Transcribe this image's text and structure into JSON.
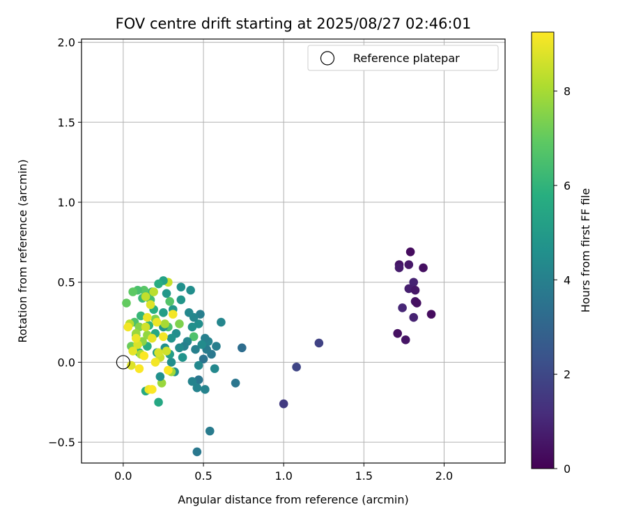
{
  "chart_data": {
    "type": "scatter",
    "title": "FOV centre drift starting at 2025/08/27 02:46:01",
    "xlabel": "Angular distance from reference (arcmin)",
    "ylabel": "Rotation from reference (arcmin)",
    "xlim": [
      -0.26,
      2.38
    ],
    "ylim": [
      -0.63,
      2.02
    ],
    "xticks": [
      0.0,
      0.5,
      1.0,
      1.5,
      2.0
    ],
    "xtick_labels": [
      "0.0",
      "0.5",
      "1.0",
      "1.5",
      "2.0"
    ],
    "yticks": [
      -0.5,
      0.0,
      0.5,
      1.0,
      1.5,
      2.0
    ],
    "ytick_labels": [
      "−0.5",
      "0.0",
      "0.5",
      "1.0",
      "1.5",
      "2.0"
    ],
    "grid": true,
    "legend": {
      "placement": "top-right",
      "entries": [
        {
          "label": "Reference platepar",
          "marker": "open-circle",
          "color": "#000000"
        }
      ]
    },
    "reference_point": {
      "x": 0.0,
      "y": 0.0
    },
    "colorbar": {
      "label": "Hours from first FF file",
      "colormap": "viridis",
      "range": [
        0,
        9.25
      ],
      "ticks": [
        0,
        2,
        4,
        6,
        8
      ],
      "tick_labels": [
        "0",
        "2",
        "4",
        "6",
        "8"
      ]
    },
    "points": [
      {
        "x": 1.79,
        "y": 0.69,
        "c": 0.3
      },
      {
        "x": 1.72,
        "y": 0.61,
        "c": 0.5
      },
      {
        "x": 1.78,
        "y": 0.61,
        "c": 0.6
      },
      {
        "x": 1.72,
        "y": 0.59,
        "c": 0.7
      },
      {
        "x": 1.87,
        "y": 0.59,
        "c": 0.4
      },
      {
        "x": 1.81,
        "y": 0.5,
        "c": 0.9
      },
      {
        "x": 1.78,
        "y": 0.46,
        "c": 0.8
      },
      {
        "x": 1.82,
        "y": 0.45,
        "c": 0.6
      },
      {
        "x": 1.82,
        "y": 0.38,
        "c": 0.5
      },
      {
        "x": 1.83,
        "y": 0.37,
        "c": 0.4
      },
      {
        "x": 1.74,
        "y": 0.34,
        "c": 1.0
      },
      {
        "x": 1.92,
        "y": 0.3,
        "c": 0.3
      },
      {
        "x": 1.81,
        "y": 0.28,
        "c": 0.9
      },
      {
        "x": 1.71,
        "y": 0.18,
        "c": 0.4
      },
      {
        "x": 1.76,
        "y": 0.14,
        "c": 0.5
      },
      {
        "x": 1.22,
        "y": 0.12,
        "c": 1.8
      },
      {
        "x": 1.08,
        "y": -0.03,
        "c": 1.9
      },
      {
        "x": 1.0,
        "y": -0.26,
        "c": 1.6
      },
      {
        "x": 0.74,
        "y": 0.09,
        "c": 3.3
      },
      {
        "x": 0.7,
        "y": -0.13,
        "c": 3.6
      },
      {
        "x": 0.61,
        "y": 0.25,
        "c": 4.2
      },
      {
        "x": 0.58,
        "y": 0.1,
        "c": 3.9
      },
      {
        "x": 0.57,
        "y": -0.04,
        "c": 4.3
      },
      {
        "x": 0.55,
        "y": 0.05,
        "c": 3.7
      },
      {
        "x": 0.54,
        "y": -0.43,
        "c": 3.8
      },
      {
        "x": 0.53,
        "y": 0.13,
        "c": 4.1
      },
      {
        "x": 0.52,
        "y": 0.08,
        "c": 3.8
      },
      {
        "x": 0.51,
        "y": 0.15,
        "c": 4.0
      },
      {
        "x": 0.51,
        "y": -0.17,
        "c": 4.1
      },
      {
        "x": 0.5,
        "y": 0.02,
        "c": 3.5
      },
      {
        "x": 0.49,
        "y": 0.11,
        "c": 4.4
      },
      {
        "x": 0.48,
        "y": 0.3,
        "c": 3.9
      },
      {
        "x": 0.47,
        "y": -0.02,
        "c": 4.3
      },
      {
        "x": 0.47,
        "y": -0.11,
        "c": 3.6
      },
      {
        "x": 0.47,
        "y": 0.24,
        "c": 4.5
      },
      {
        "x": 0.46,
        "y": -0.16,
        "c": 4.1
      },
      {
        "x": 0.46,
        "y": -0.56,
        "c": 3.7
      },
      {
        "x": 0.45,
        "y": 0.08,
        "c": 4.0
      },
      {
        "x": 0.44,
        "y": 0.16,
        "c": 6.6
      },
      {
        "x": 0.44,
        "y": 0.28,
        "c": 4.2
      },
      {
        "x": 0.43,
        "y": 0.22,
        "c": 4.6
      },
      {
        "x": 0.43,
        "y": -0.12,
        "c": 4.1
      },
      {
        "x": 0.42,
        "y": 0.45,
        "c": 4.5
      },
      {
        "x": 0.41,
        "y": 0.31,
        "c": 4.3
      },
      {
        "x": 0.4,
        "y": 0.13,
        "c": 4.2
      },
      {
        "x": 0.38,
        "y": 0.1,
        "c": 4.0
      },
      {
        "x": 0.37,
        "y": 0.03,
        "c": 4.7
      },
      {
        "x": 0.36,
        "y": 0.39,
        "c": 4.8
      },
      {
        "x": 0.36,
        "y": 0.47,
        "c": 4.6
      },
      {
        "x": 0.35,
        "y": 0.24,
        "c": 7.4
      },
      {
        "x": 0.35,
        "y": 0.09,
        "c": 4.4
      },
      {
        "x": 0.33,
        "y": 0.18,
        "c": 4.5
      },
      {
        "x": 0.32,
        "y": -0.06,
        "c": 4.6
      },
      {
        "x": 0.31,
        "y": 0.33,
        "c": 4.9
      },
      {
        "x": 0.3,
        "y": 0.15,
        "c": 4.7
      },
      {
        "x": 0.3,
        "y": 0.0,
        "c": 4.5
      },
      {
        "x": 0.29,
        "y": 0.05,
        "c": 5.1
      },
      {
        "x": 0.29,
        "y": 0.38,
        "c": 6.7
      },
      {
        "x": 0.28,
        "y": 0.5,
        "c": 8.5
      },
      {
        "x": 0.28,
        "y": 0.22,
        "c": 6.5
      },
      {
        "x": 0.27,
        "y": 0.43,
        "c": 4.9
      },
      {
        "x": 0.26,
        "y": 0.09,
        "c": 4.6
      },
      {
        "x": 0.25,
        "y": 0.31,
        "c": 5.1
      },
      {
        "x": 0.25,
        "y": 0.51,
        "c": 5.3
      },
      {
        "x": 0.25,
        "y": 0.22,
        "c": 4.8
      },
      {
        "x": 0.24,
        "y": -0.13,
        "c": 7.8
      },
      {
        "x": 0.23,
        "y": -0.09,
        "c": 4.6
      },
      {
        "x": 0.22,
        "y": -0.25,
        "c": 5.5
      },
      {
        "x": 0.22,
        "y": 0.49,
        "c": 5.7
      },
      {
        "x": 0.21,
        "y": 0.06,
        "c": 5.1
      },
      {
        "x": 0.2,
        "y": 0.18,
        "c": 5.5
      },
      {
        "x": 0.19,
        "y": 0.33,
        "c": 5.8
      },
      {
        "x": 0.18,
        "y": 0.44,
        "c": 6.2
      },
      {
        "x": 0.17,
        "y": 0.39,
        "c": 6.4
      },
      {
        "x": 0.16,
        "y": 0.23,
        "c": 5.9
      },
      {
        "x": 0.15,
        "y": 0.1,
        "c": 5.7
      },
      {
        "x": 0.14,
        "y": -0.18,
        "c": 5.6
      },
      {
        "x": 0.13,
        "y": 0.45,
        "c": 6.8
      },
      {
        "x": 0.12,
        "y": 0.4,
        "c": 6.2
      },
      {
        "x": 0.11,
        "y": 0.29,
        "c": 6.1
      },
      {
        "x": 0.1,
        "y": 0.06,
        "c": 5.8
      },
      {
        "x": 0.09,
        "y": 0.45,
        "c": 6.5
      },
      {
        "x": 0.08,
        "y": 0.17,
        "c": 5.6
      },
      {
        "x": 0.07,
        "y": 0.25,
        "c": 6.6
      },
      {
        "x": 0.06,
        "y": 0.44,
        "c": 6.9
      },
      {
        "x": 0.05,
        "y": 0.1,
        "c": 7.1
      },
      {
        "x": 0.02,
        "y": 0.37,
        "c": 7.0
      },
      {
        "x": 0.1,
        "y": 0.22,
        "c": 7.5
      },
      {
        "x": 0.12,
        "y": 0.13,
        "c": 7.6
      },
      {
        "x": 0.2,
        "y": 0.27,
        "c": 7.4
      },
      {
        "x": 0.08,
        "y": 0.18,
        "c": 7.8
      },
      {
        "x": 0.15,
        "y": 0.17,
        "c": 7.7
      },
      {
        "x": 0.3,
        "y": -0.06,
        "c": 7.9
      },
      {
        "x": 0.26,
        "y": 0.24,
        "c": 8.0
      },
      {
        "x": 0.11,
        "y": 0.05,
        "c": 8.1
      },
      {
        "x": 0.04,
        "y": 0.24,
        "c": 8.2
      },
      {
        "x": 0.19,
        "y": 0.44,
        "c": 8.3
      },
      {
        "x": 0.14,
        "y": 0.41,
        "c": 8.4
      },
      {
        "x": 0.23,
        "y": 0.03,
        "c": 8.5
      },
      {
        "x": 0.27,
        "y": 0.07,
        "c": 8.6
      },
      {
        "x": 0.09,
        "y": 0.11,
        "c": 8.7
      },
      {
        "x": 0.17,
        "y": 0.36,
        "c": 8.8
      },
      {
        "x": 0.06,
        "y": 0.07,
        "c": 8.9
      },
      {
        "x": 0.21,
        "y": 0.25,
        "c": 9.0
      },
      {
        "x": 0.03,
        "y": 0.22,
        "c": 9.1
      },
      {
        "x": 0.13,
        "y": 0.04,
        "c": 9.2
      },
      {
        "x": 0.15,
        "y": 0.28,
        "c": 9.0
      },
      {
        "x": 0.18,
        "y": 0.15,
        "c": 8.9
      },
      {
        "x": 0.25,
        "y": 0.16,
        "c": 9.1
      },
      {
        "x": 0.1,
        "y": -0.04,
        "c": 9.2
      },
      {
        "x": 0.05,
        "y": -0.02,
        "c": 8.8
      },
      {
        "x": 0.16,
        "y": -0.17,
        "c": 9.0
      },
      {
        "x": 0.18,
        "y": -0.17,
        "c": 9.2
      },
      {
        "x": 0.22,
        "y": 0.06,
        "c": 8.7
      },
      {
        "x": 0.31,
        "y": 0.3,
        "c": 9.1
      },
      {
        "x": 0.28,
        "y": -0.05,
        "c": 9.2
      },
      {
        "x": 0.14,
        "y": 0.22,
        "c": 8.6
      },
      {
        "x": 0.08,
        "y": 0.15,
        "c": 9.0
      },
      {
        "x": 0.2,
        "y": 0.0,
        "c": 9.1
      }
    ]
  }
}
